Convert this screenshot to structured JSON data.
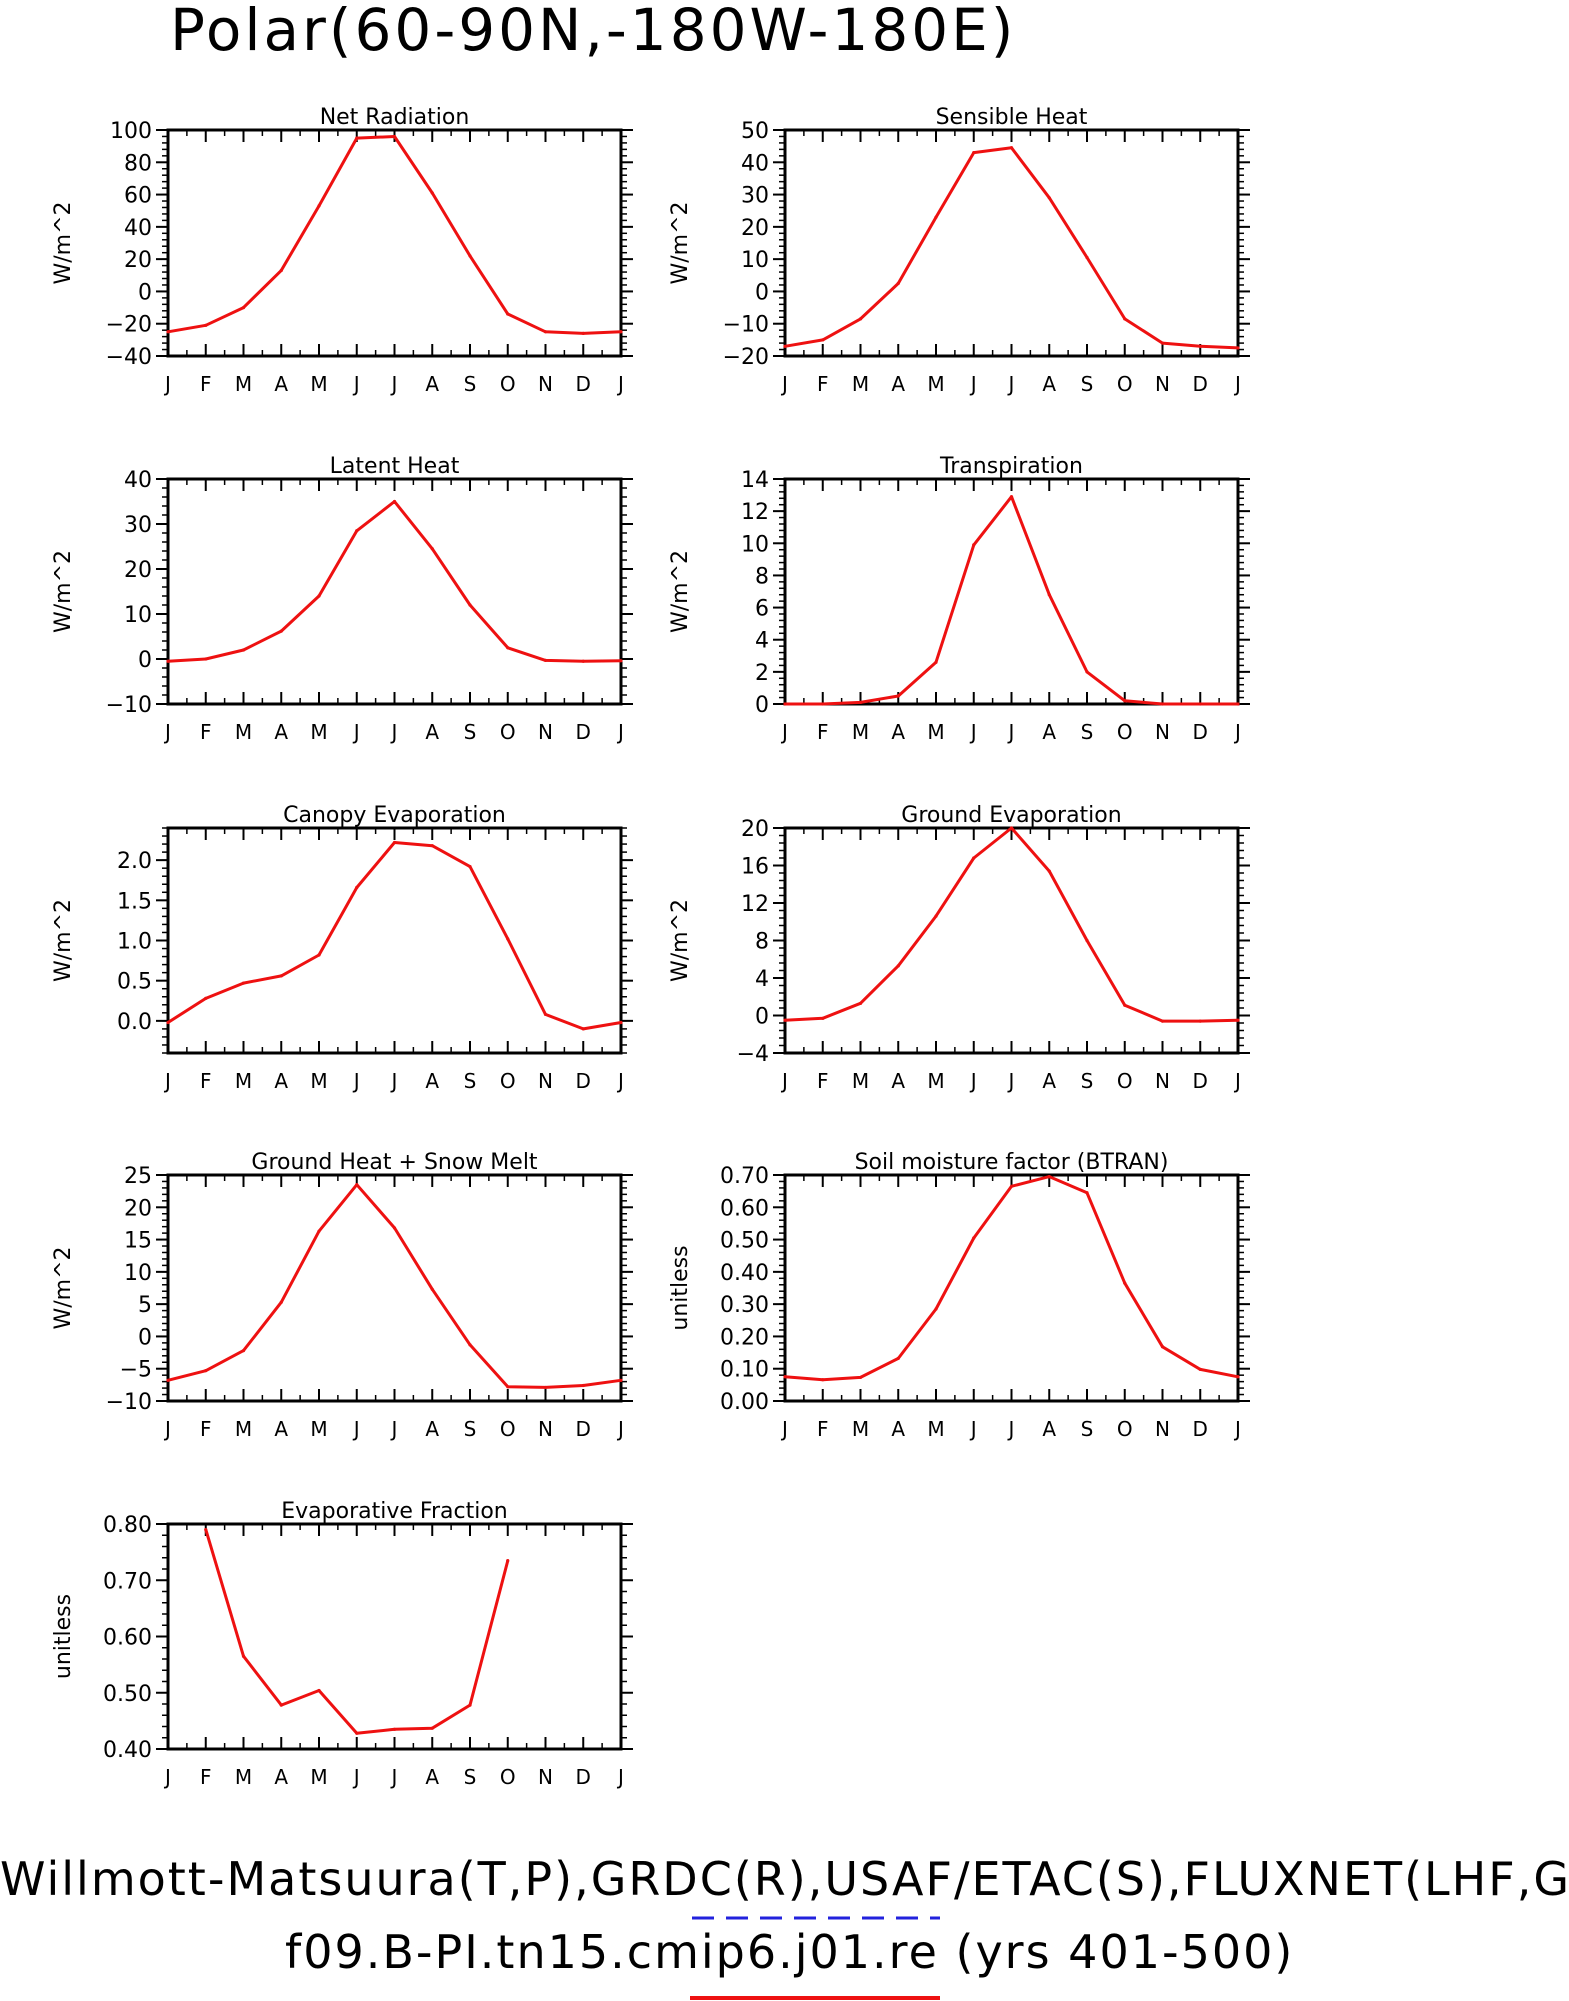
{
  "page_title": "Polar(60-90N,-180W-180E)",
  "footer": {
    "line1": "Willmott-Matsuura(T,P),GRDC(R),USAF/ETAC(S),FLUXNET(LHF,GPP)",
    "line2": "f09.B-PI.tn15.cmip6.j01.re (yrs 401-500)",
    "dash_color": "#2222dd",
    "solid_color": "#ee1111"
  },
  "months": [
    "J",
    "F",
    "M",
    "A",
    "M",
    "J",
    "J",
    "A",
    "S",
    "O",
    "N",
    "D",
    "J"
  ],
  "line_color": "#ee1111",
  "chart_data": [
    {
      "type": "line",
      "title": "Net Radiation",
      "ylabel": "W/m^2",
      "ylim": [
        -40,
        100
      ],
      "yticks": [
        -40,
        -20,
        0,
        20,
        40,
        60,
        80,
        100
      ],
      "ytick_labels": [
        "-40",
        "-20",
        "0",
        "20",
        "40",
        "60",
        "80",
        "100"
      ],
      "ytick_labels_display": [
        "−40",
        "−20",
        "0",
        "20",
        "40",
        "60",
        "80",
        "100"
      ],
      "series": [
        {
          "values": [
            -25,
            -21,
            -10,
            13,
            53,
            95,
            96,
            61,
            22,
            -14,
            -25,
            -26,
            -25
          ]
        }
      ]
    },
    {
      "type": "line",
      "title": "Sensible Heat",
      "ylabel": "W/m^2",
      "ylim": [
        -20,
        50
      ],
      "yticks": [
        -20,
        -10,
        0,
        10,
        20,
        30,
        40,
        50
      ],
      "ytick_labels": [
        "-20",
        "-10",
        "0",
        "10",
        "20",
        "30",
        "40",
        "50"
      ],
      "ytick_labels_display": [
        "−20",
        "−10",
        "0",
        "10",
        "20",
        "30",
        "40",
        "50"
      ],
      "series": [
        {
          "values": [
            -17,
            -15,
            -8.5,
            2.5,
            23,
            43,
            44.5,
            29,
            10.5,
            -8.5,
            -16,
            -17,
            -17.5
          ]
        }
      ]
    },
    {
      "type": "line",
      "title": "Latent Heat",
      "ylabel": "W/m^2",
      "ylim": [
        -10,
        40
      ],
      "yticks": [
        -10,
        0,
        10,
        20,
        30,
        40
      ],
      "ytick_labels": [
        "-10",
        "0",
        "10",
        "20",
        "30",
        "40"
      ],
      "ytick_labels_display": [
        "−10",
        "0",
        "10",
        "20",
        "30",
        "40"
      ],
      "series": [
        {
          "values": [
            -0.5,
            0,
            2,
            6.2,
            14,
            28.5,
            35,
            24.5,
            12,
            2.5,
            -0.3,
            -0.5,
            -0.4
          ]
        }
      ]
    },
    {
      "type": "line",
      "title": "Transpiration",
      "ylabel": "W/m^2",
      "ylim": [
        0,
        14
      ],
      "yticks": [
        0,
        2,
        4,
        6,
        8,
        10,
        12,
        14
      ],
      "ytick_labels": [
        "0",
        "2",
        "4",
        "6",
        "8",
        "10",
        "12",
        "14"
      ],
      "ytick_labels_display": [
        "0",
        "2",
        "4",
        "6",
        "8",
        "10",
        "12",
        "14"
      ],
      "series": [
        {
          "values": [
            0,
            0,
            0.1,
            0.5,
            2.6,
            9.9,
            12.9,
            6.8,
            2,
            0.2,
            0,
            0,
            0
          ]
        }
      ]
    },
    {
      "type": "line",
      "title": "Canopy Evaporation",
      "ylabel": "W/m^2",
      "ylim": [
        -0.4,
        2.4
      ],
      "yticks": [
        0.0,
        0.5,
        1.0,
        1.5,
        2.0
      ],
      "ytick_labels": [
        "0.0",
        "0.5",
        "1.0",
        "1.5",
        "2.0"
      ],
      "ytick_labels_display": [
        "0.0",
        "0.5",
        "1.0",
        "1.5",
        "2.0"
      ],
      "series": [
        {
          "values": [
            -0.02,
            0.28,
            0.47,
            0.56,
            0.82,
            1.66,
            2.22,
            2.18,
            1.92,
            1.02,
            0.08,
            -0.1,
            -0.02
          ]
        }
      ]
    },
    {
      "type": "line",
      "title": "Ground Evaporation",
      "ylabel": "W/m^2",
      "ylim": [
        -4,
        20
      ],
      "yticks": [
        -4,
        0,
        4,
        8,
        12,
        16,
        20
      ],
      "ytick_labels": [
        "-4",
        "0",
        "4",
        "8",
        "12",
        "16",
        "20"
      ],
      "ytick_labels_display": [
        "−4",
        "0",
        "4",
        "8",
        "12",
        "16",
        "20"
      ],
      "series": [
        {
          "values": [
            -0.5,
            -0.3,
            1.3,
            5.3,
            10.6,
            16.8,
            20,
            15.4,
            8,
            1.1,
            -0.6,
            -0.6,
            -0.5
          ]
        }
      ]
    },
    {
      "type": "line",
      "title": "Ground Heat + Snow Melt",
      "ylabel": "W/m^2",
      "ylim": [
        -10,
        25
      ],
      "yticks": [
        -10,
        -5,
        0,
        5,
        10,
        15,
        20,
        25
      ],
      "ytick_labels": [
        "-10",
        "-5",
        "0",
        "5",
        "10",
        "15",
        "20",
        "25"
      ],
      "ytick_labels_display": [
        "−10",
        "−5",
        "0",
        "5",
        "10",
        "15",
        "20",
        "25"
      ],
      "series": [
        {
          "values": [
            -6.8,
            -5.3,
            -2.2,
            5.3,
            16.3,
            23.5,
            16.8,
            7.3,
            -1.3,
            -7.8,
            -7.9,
            -7.6,
            -6.8
          ]
        }
      ]
    },
    {
      "type": "line",
      "title": "Soil moisture factor (BTRAN)",
      "ylabel": "unitless",
      "ylim": [
        0,
        0.7
      ],
      "yticks": [
        0.0,
        0.1,
        0.2,
        0.3,
        0.4,
        0.5,
        0.6,
        0.7
      ],
      "ytick_labels": [
        "0.00",
        "0.10",
        "0.20",
        "0.30",
        "0.40",
        "0.50",
        "0.60",
        "0.70"
      ],
      "ytick_labels_display": [
        "0.00",
        "0.10",
        "0.20",
        "0.30",
        "0.40",
        "0.50",
        "0.60",
        "0.70"
      ],
      "series": [
        {
          "values": [
            0.075,
            0.066,
            0.073,
            0.132,
            0.285,
            0.505,
            0.665,
            0.695,
            0.645,
            0.365,
            0.168,
            0.098,
            0.075
          ]
        }
      ]
    },
    {
      "type": "line",
      "title": "Evaporative Fraction",
      "ylabel": "unitless",
      "ylim": [
        0.4,
        0.8
      ],
      "yticks": [
        0.4,
        0.5,
        0.6,
        0.7,
        0.8
      ],
      "ytick_labels": [
        "0.40",
        "0.50",
        "0.60",
        "0.70",
        "0.80"
      ],
      "ytick_labels_display": [
        "0.40",
        "0.50",
        "0.60",
        "0.70",
        "0.80"
      ],
      "series": [
        {
          "values": [
            null,
            0.79,
            0.565,
            0.478,
            0.504,
            0.428,
            0.435,
            0.437,
            0.478,
            0.735,
            null,
            null,
            null
          ]
        }
      ]
    }
  ]
}
